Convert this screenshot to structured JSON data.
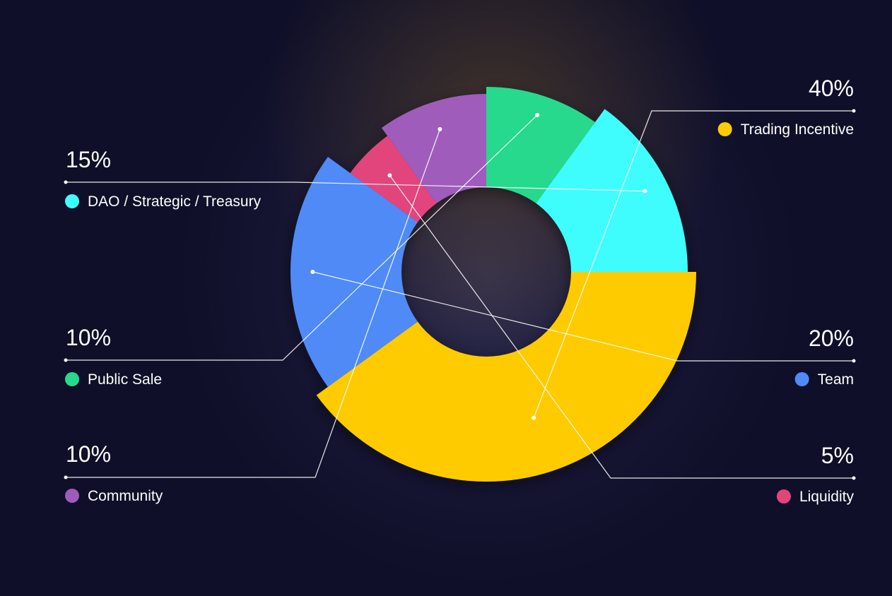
{
  "chart_data": {
    "type": "pie",
    "slices": [
      {
        "label": "Trading Incentive",
        "value": 40,
        "percent_label": "40%",
        "color": "#fecb05"
      },
      {
        "label": "Team",
        "value": 20,
        "percent_label": "20%",
        "color": "#4f8af7"
      },
      {
        "label": "Liquidity",
        "value": 5,
        "percent_label": "5%",
        "color": "#e2457b"
      },
      {
        "label": "Community",
        "value": 10,
        "percent_label": "10%",
        "color": "#a05bba"
      },
      {
        "label": "Public Sale",
        "value": 10,
        "percent_label": "10%",
        "color": "#27d98c"
      },
      {
        "label": "DAO / Strategic / Treasury",
        "value": 15,
        "percent_label": "15%",
        "color": "#3ffdfd"
      }
    ]
  }
}
